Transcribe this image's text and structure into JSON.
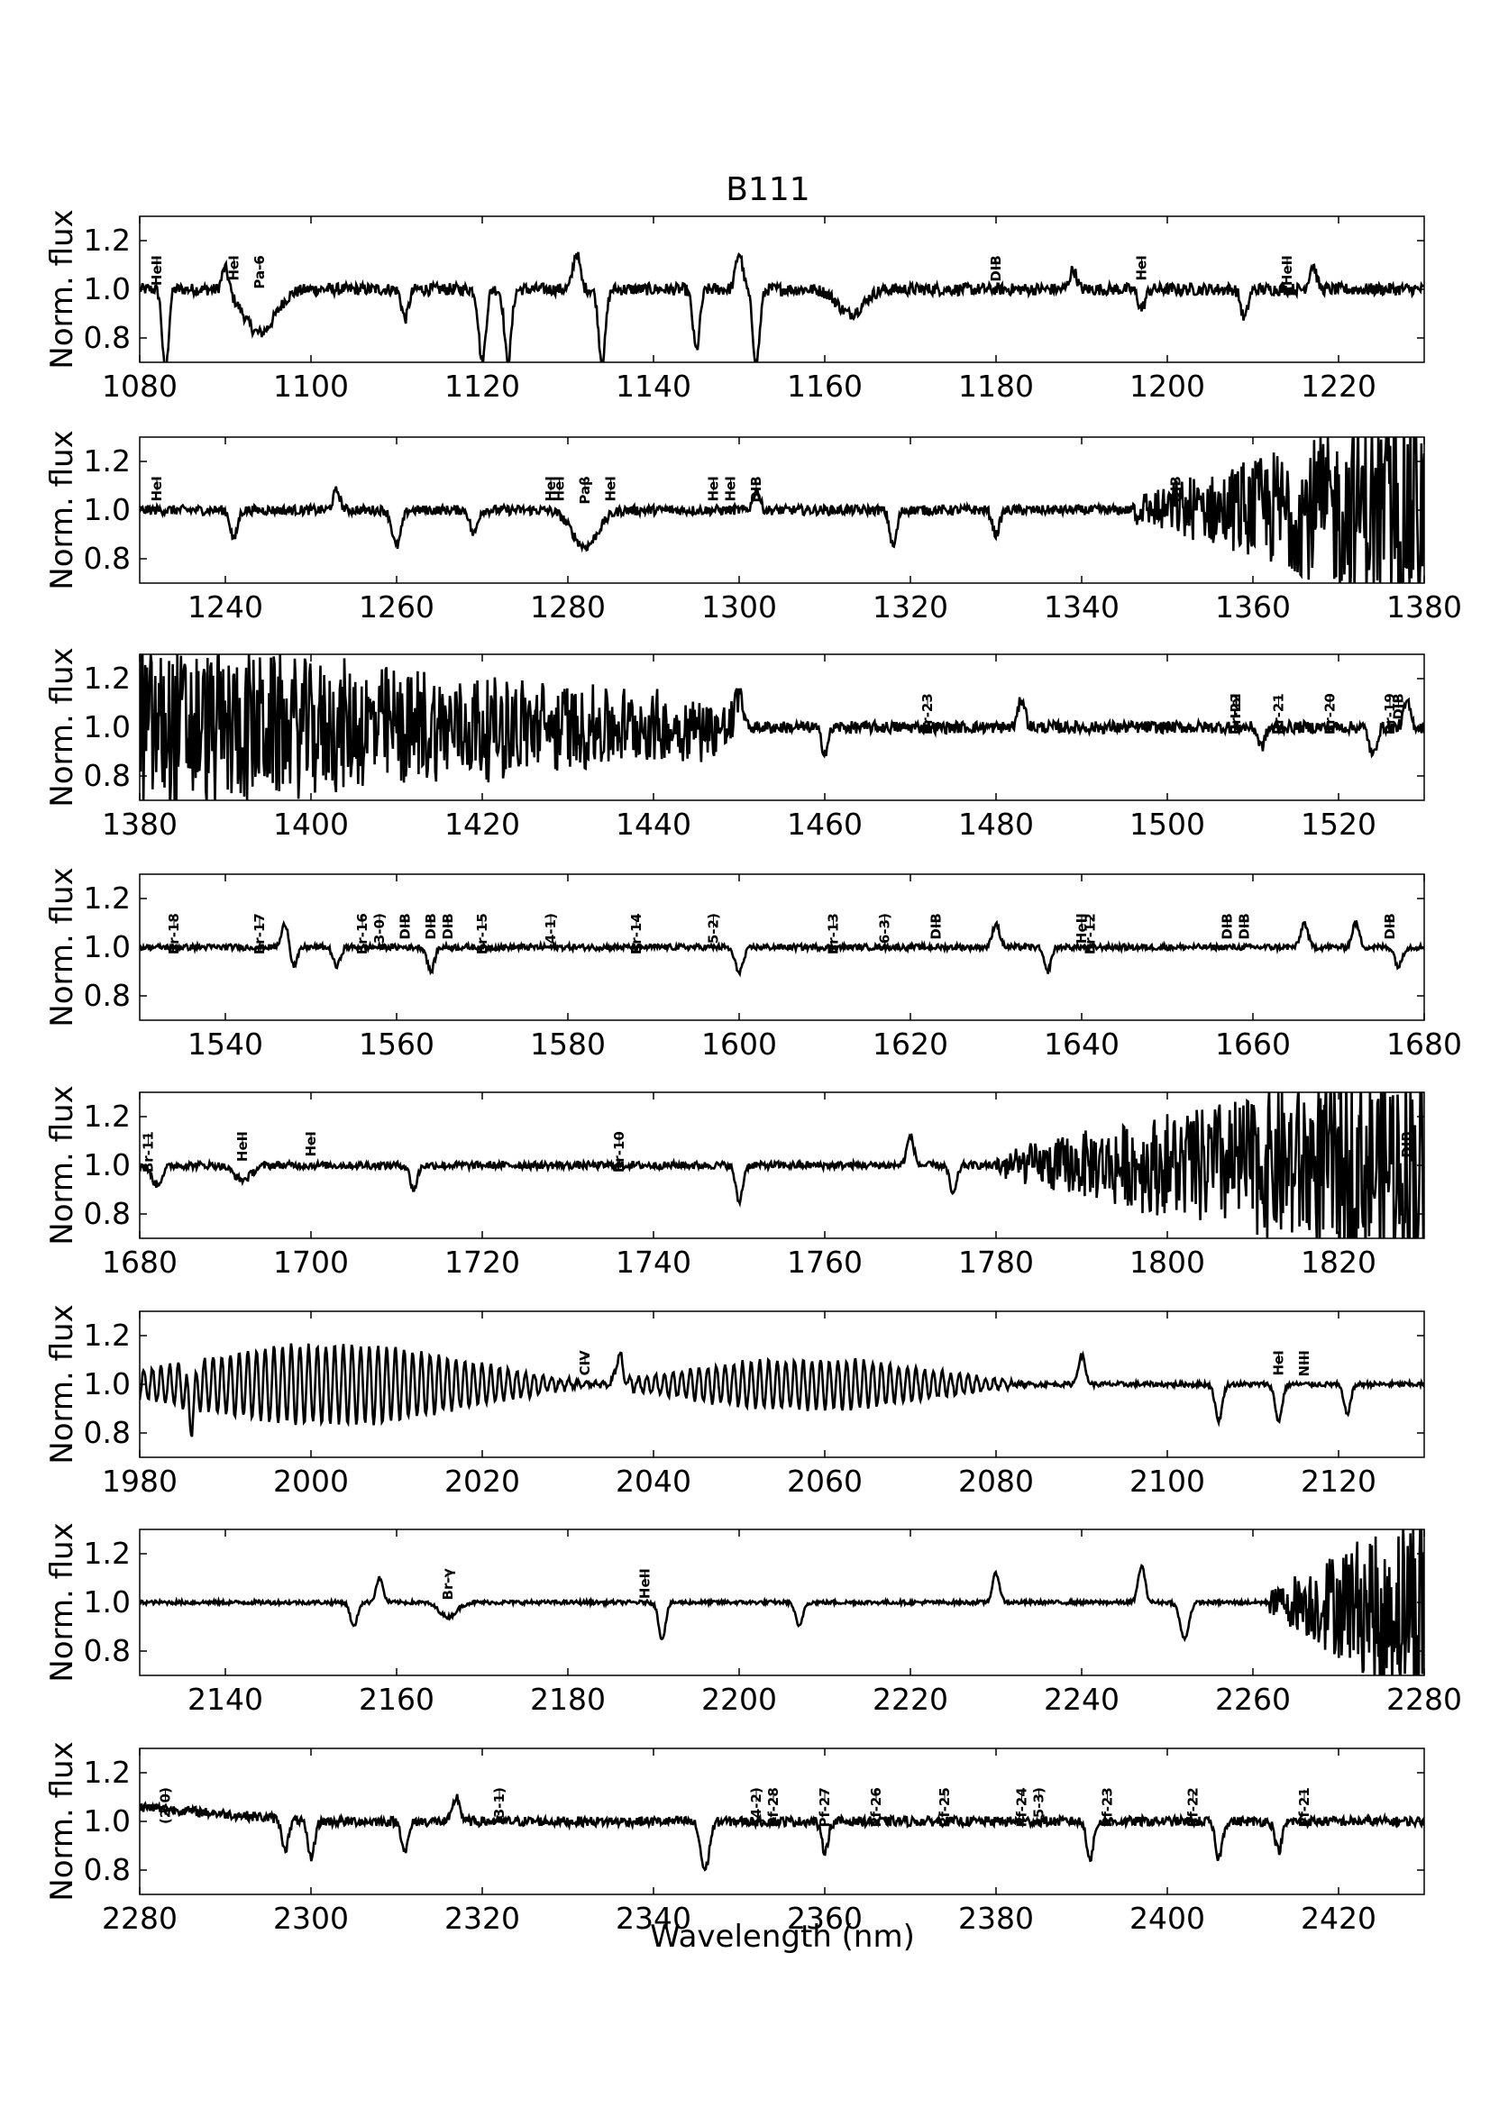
{
  "figure": {
    "title": "B111",
    "xlabel": "Wavelength (nm)",
    "ylabel": "Norm. flux"
  },
  "chart_data": [
    {
      "type": "line",
      "title": "B111",
      "ylabel": "Norm. flux",
      "xlim": [
        1080,
        1230
      ],
      "ylim": [
        0.7,
        1.3
      ],
      "xticks": [
        "1080",
        "1100",
        "1120",
        "1140",
        "1160",
        "1180",
        "1200",
        "1220"
      ],
      "yticks": [
        "0.8",
        "1.0",
        "1.2"
      ],
      "annotations": [
        {
          "label": "HeII",
          "x": 1082
        },
        {
          "label": "HeI",
          "x": 1091
        },
        {
          "label": "Pa-6",
          "x": 1094
        },
        {
          "label": "DIB",
          "x": 1180
        },
        {
          "label": "HeI",
          "x": 1197
        },
        {
          "label": "HeII",
          "x": 1214
        }
      ],
      "features": [
        {
          "x": 1083,
          "depth": -0.35,
          "width": 0.35
        },
        {
          "x": 1090,
          "depth": 0.1,
          "width": 0.4
        },
        {
          "x": 1094,
          "depth": -0.18,
          "width": 1.8
        },
        {
          "x": 1111,
          "depth": -0.12,
          "width": 0.4
        },
        {
          "x": 1120,
          "depth": -0.3,
          "width": 0.4
        },
        {
          "x": 1123,
          "depth": -0.3,
          "width": 0.4
        },
        {
          "x": 1131,
          "depth": 0.15,
          "width": 0.4
        },
        {
          "x": 1134,
          "depth": -0.3,
          "width": 0.4
        },
        {
          "x": 1145,
          "depth": -0.25,
          "width": 0.4
        },
        {
          "x": 1150,
          "depth": 0.15,
          "width": 0.4
        },
        {
          "x": 1152,
          "depth": -0.3,
          "width": 0.4
        },
        {
          "x": 1163,
          "depth": -0.1,
          "width": 1.5
        },
        {
          "x": 1189,
          "depth": 0.08,
          "width": 0.4
        },
        {
          "x": 1197,
          "depth": -0.08,
          "width": 0.4
        },
        {
          "x": 1209,
          "depth": -0.12,
          "width": 0.4
        },
        {
          "x": 1217,
          "depth": 0.1,
          "width": 0.4
        }
      ],
      "noise": 0.025
    },
    {
      "type": "line",
      "ylabel": "Norm. flux",
      "xlim": [
        1230,
        1380
      ],
      "ylim": [
        0.7,
        1.3
      ],
      "xticks": [
        "1240",
        "1260",
        "1280",
        "1300",
        "1320",
        "1340",
        "1360",
        "1380"
      ],
      "yticks": [
        "0.8",
        "1.0",
        "1.2"
      ],
      "annotations": [
        {
          "label": "HeI",
          "x": 1232
        },
        {
          "label": "HeI",
          "x": 1278
        },
        {
          "label": "HeI",
          "x": 1279
        },
        {
          "label": "Paβ",
          "x": 1282
        },
        {
          "label": "HeI",
          "x": 1285
        },
        {
          "label": "HeI",
          "x": 1297
        },
        {
          "label": "HeI",
          "x": 1299
        },
        {
          "label": "DIB",
          "x": 1302
        },
        {
          "label": "DIB",
          "x": 1351
        }
      ],
      "features": [
        {
          "x": 1241,
          "depth": -0.12,
          "width": 0.4
        },
        {
          "x": 1253,
          "depth": 0.08,
          "width": 0.4
        },
        {
          "x": 1260,
          "depth": -0.15,
          "width": 0.5
        },
        {
          "x": 1269,
          "depth": -0.1,
          "width": 0.4
        },
        {
          "x": 1282,
          "depth": -0.15,
          "width": 1.5
        },
        {
          "x": 1302,
          "depth": 0.08,
          "width": 0.4
        },
        {
          "x": 1318,
          "depth": -0.15,
          "width": 0.4
        },
        {
          "x": 1330,
          "depth": -0.1,
          "width": 0.4
        }
      ],
      "noisy_region": [
        1346,
        1380
      ],
      "noise": 0.02
    },
    {
      "type": "line",
      "ylabel": "Norm. flux",
      "xlim": [
        1380,
        1530
      ],
      "ylim": [
        0.7,
        1.3
      ],
      "xticks": [
        "1380",
        "1400",
        "1420",
        "1440",
        "1460",
        "1480",
        "1500",
        "1520"
      ],
      "yticks": [
        "0.8",
        "1.0",
        "1.2"
      ],
      "annotations": [
        {
          "label": "Br-23",
          "x": 1472
        },
        {
          "label": "HeI",
          "x": 1508
        },
        {
          "label": "Br-22",
          "x": 1508
        },
        {
          "label": "Br-21",
          "x": 1513
        },
        {
          "label": "Br-20",
          "x": 1519
        },
        {
          "label": "Br-19",
          "x": 1526
        },
        {
          "label": "DIB",
          "x": 1527
        }
      ],
      "features": [
        {
          "x": 1450,
          "depth": 0.15,
          "width": 0.4
        },
        {
          "x": 1460,
          "depth": -0.1,
          "width": 0.4
        },
        {
          "x": 1483,
          "depth": 0.12,
          "width": 0.4
        },
        {
          "x": 1511,
          "depth": -0.08,
          "width": 0.4
        },
        {
          "x": 1524,
          "depth": -0.12,
          "width": 0.4
        },
        {
          "x": 1528,
          "depth": 0.1,
          "width": 0.4
        }
      ],
      "noisy_region": [
        1380,
        1450
      ],
      "noise": 0.025
    },
    {
      "type": "line",
      "ylabel": "Norm. flux",
      "xlim": [
        1530,
        1680
      ],
      "ylim": [
        0.7,
        1.3
      ],
      "xticks": [
        "1540",
        "1560",
        "1580",
        "1600",
        "1620",
        "1640",
        "1660",
        "1680"
      ],
      "yticks": [
        "0.8",
        "1.0",
        "1.2"
      ],
      "annotations": [
        {
          "label": "Br-18",
          "x": 1534
        },
        {
          "label": "Br-17",
          "x": 1544
        },
        {
          "label": "Br-16",
          "x": 1556
        },
        {
          "label": "(3-0)",
          "x": 1558
        },
        {
          "label": "DIB",
          "x": 1561
        },
        {
          "label": "DIB",
          "x": 1564
        },
        {
          "label": "DIB",
          "x": 1566
        },
        {
          "label": "Br-15",
          "x": 1570
        },
        {
          "label": "(4-1)",
          "x": 1578
        },
        {
          "label": "Br-14",
          "x": 1588
        },
        {
          "label": "(5-2)",
          "x": 1597
        },
        {
          "label": "Br-13",
          "x": 1611
        },
        {
          "label": "(6-3)",
          "x": 1617
        },
        {
          "label": "DIB",
          "x": 1623
        },
        {
          "label": "HeII",
          "x": 1640
        },
        {
          "label": "Br-12",
          "x": 1641
        },
        {
          "label": "DIB",
          "x": 1657
        },
        {
          "label": "DIB",
          "x": 1659
        },
        {
          "label": "DIB",
          "x": 1676
        }
      ],
      "features": [
        {
          "x": 1547,
          "depth": 0.1,
          "width": 0.4
        },
        {
          "x": 1548,
          "depth": -0.08,
          "width": 0.4
        },
        {
          "x": 1553,
          "depth": -0.08,
          "width": 0.4
        },
        {
          "x": 1564,
          "depth": -0.1,
          "width": 0.4
        },
        {
          "x": 1600,
          "depth": -0.1,
          "width": 0.5
        },
        {
          "x": 1630,
          "depth": 0.1,
          "width": 0.4
        },
        {
          "x": 1636,
          "depth": -0.1,
          "width": 0.4
        },
        {
          "x": 1666,
          "depth": 0.1,
          "width": 0.4
        },
        {
          "x": 1672,
          "depth": 0.1,
          "width": 0.4
        },
        {
          "x": 1677,
          "depth": -0.08,
          "width": 0.4
        }
      ],
      "noise": 0.012
    },
    {
      "type": "line",
      "ylabel": "Norm. flux",
      "xlim": [
        1680,
        1830
      ],
      "ylim": [
        0.7,
        1.3
      ],
      "xticks": [
        "1680",
        "1700",
        "1720",
        "1740",
        "1760",
        "1780",
        "1800",
        "1820"
      ],
      "yticks": [
        "0.8",
        "1.0",
        "1.2"
      ],
      "annotations": [
        {
          "label": "Br-11",
          "x": 1681
        },
        {
          "label": "HeII",
          "x": 1692
        },
        {
          "label": "HeI",
          "x": 1700
        },
        {
          "label": "Br-10",
          "x": 1736
        },
        {
          "label": "DIB",
          "x": 1828
        }
      ],
      "features": [
        {
          "x": 1682,
          "depth": -0.08,
          "width": 0.6
        },
        {
          "x": 1692,
          "depth": -0.06,
          "width": 1.0
        },
        {
          "x": 1712,
          "depth": -0.1,
          "width": 0.4
        },
        {
          "x": 1750,
          "depth": -0.15,
          "width": 0.4
        },
        {
          "x": 1770,
          "depth": 0.12,
          "width": 0.4
        },
        {
          "x": 1775,
          "depth": -0.12,
          "width": 0.4
        }
      ],
      "noisy_region": [
        1780,
        1830
      ],
      "noise": 0.015
    },
    {
      "type": "line",
      "ylabel": "Norm. flux",
      "xlim": [
        1980,
        2130
      ],
      "ylim": [
        0.7,
        1.3
      ],
      "xticks": [
        "1980",
        "2000",
        "2020",
        "2040",
        "2060",
        "2080",
        "2100",
        "2120"
      ],
      "yticks": [
        "0.8",
        "1.0",
        "1.2"
      ],
      "annotations": [
        {
          "label": "CIV",
          "x": 2032
        },
        {
          "label": "HeI",
          "x": 2113
        },
        {
          "label": "NIII",
          "x": 2116
        }
      ],
      "features": [
        {
          "x": 1986,
          "depth": -0.12,
          "width": 0.4
        },
        {
          "x": 2036,
          "depth": 0.12,
          "width": 0.4
        },
        {
          "x": 2090,
          "depth": 0.12,
          "width": 0.4
        },
        {
          "x": 2106,
          "depth": -0.15,
          "width": 0.4
        },
        {
          "x": 2113,
          "depth": -0.15,
          "width": 0.4
        },
        {
          "x": 2121,
          "depth": -0.12,
          "width": 0.4
        }
      ],
      "oscillations": [
        {
          "center": 2002,
          "amplitude": 0.16,
          "half_width": 6,
          "tail": 25
        },
        {
          "center": 2058,
          "amplitude": 0.1,
          "half_width": 6,
          "tail": 20
        }
      ],
      "noise": 0.01
    },
    {
      "type": "line",
      "ylabel": "Norm. flux",
      "xlim": [
        2130,
        2280
      ],
      "ylim": [
        0.7,
        1.3
      ],
      "xticks": [
        "2140",
        "2160",
        "2180",
        "2200",
        "2220",
        "2240",
        "2260",
        "2280"
      ],
      "yticks": [
        "0.8",
        "1.0",
        "1.2"
      ],
      "annotations": [
        {
          "label": "Br-γ",
          "x": 2166
        },
        {
          "label": "HeII",
          "x": 2189
        }
      ],
      "features": [
        {
          "x": 2155,
          "depth": -0.1,
          "width": 0.4
        },
        {
          "x": 2158,
          "depth": 0.1,
          "width": 0.4
        },
        {
          "x": 2166,
          "depth": -0.06,
          "width": 1.0
        },
        {
          "x": 2191,
          "depth": -0.15,
          "width": 0.4
        },
        {
          "x": 2207,
          "depth": -0.1,
          "width": 0.4
        },
        {
          "x": 2230,
          "depth": 0.12,
          "width": 0.4
        },
        {
          "x": 2247,
          "depth": 0.15,
          "width": 0.4
        },
        {
          "x": 2252,
          "depth": -0.15,
          "width": 0.5
        },
        {
          "x": 2275,
          "depth": -0.2,
          "width": 0.4
        }
      ],
      "noisy_region": [
        2262,
        2280
      ],
      "noise": 0.008
    },
    {
      "type": "line",
      "ylabel": "Norm. flux",
      "xlabel": "Wavelength (nm)",
      "xlim": [
        2280,
        2430
      ],
      "ylim": [
        0.7,
        1.3
      ],
      "xticks": [
        "2280",
        "2300",
        "2320",
        "2340",
        "2360",
        "2380",
        "2400",
        "2420"
      ],
      "yticks": [
        "0.8",
        "1.0",
        "1.2"
      ],
      "annotations": [
        {
          "label": "(2-0)",
          "x": 2283
        },
        {
          "label": "(3-1)",
          "x": 2322
        },
        {
          "label": "(4-2)",
          "x": 2352
        },
        {
          "label": "Pf-28",
          "x": 2354
        },
        {
          "label": "Pf-27",
          "x": 2360
        },
        {
          "label": "Pf-26",
          "x": 2366
        },
        {
          "label": "Pf-25",
          "x": 2374
        },
        {
          "label": "Pf-24",
          "x": 2383
        },
        {
          "label": "(5-3)",
          "x": 2385
        },
        {
          "label": "Pf-23",
          "x": 2393
        },
        {
          "label": "Pf-22",
          "x": 2403
        },
        {
          "label": "Pf-21",
          "x": 2416
        }
      ],
      "features": [
        {
          "x": 2297,
          "depth": -0.12,
          "width": 0.4
        },
        {
          "x": 2300,
          "depth": -0.15,
          "width": 0.4
        },
        {
          "x": 2311,
          "depth": -0.12,
          "width": 0.4
        },
        {
          "x": 2317,
          "depth": 0.1,
          "width": 0.4
        },
        {
          "x": 2346,
          "depth": -0.2,
          "width": 0.5
        },
        {
          "x": 2360,
          "depth": -0.12,
          "width": 0.4
        },
        {
          "x": 2391,
          "depth": -0.15,
          "width": 0.4
        },
        {
          "x": 2406,
          "depth": -0.15,
          "width": 0.4
        },
        {
          "x": 2413,
          "depth": -0.12,
          "width": 0.4
        }
      ],
      "trend": {
        "start": 1.06,
        "end_x": 2300
      },
      "noise": 0.02
    }
  ]
}
